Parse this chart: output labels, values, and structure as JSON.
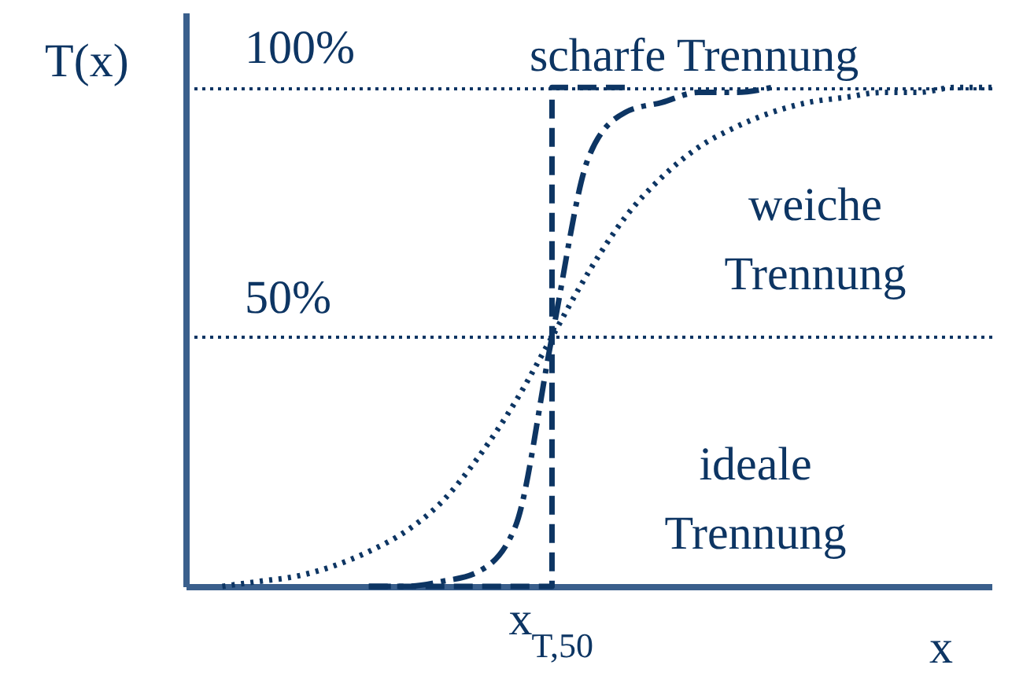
{
  "chart_data": {
    "type": "line",
    "xlabel": "x",
    "ylabel": "T(x)",
    "categories": [
      null,
      null,
      null,
      null,
      null,
      null,
      null,
      null,
      null,
      null,
      "x$_{T,50}$",
      null,
      null,
      null,
      null,
      null,
      null,
      null,
      null,
      null,
      null,
      null,
      null
    ],
    "ylim": [
      0,
      115
    ],
    "yticks": [
      {
        "value": 50,
        "label": "50%"
      },
      {
        "value": 100,
        "label": "100%"
      }
    ],
    "grid": "y",
    "series": [
      {
        "name": "scharfe Trennung",
        "color": "#0d3563",
        "line_style": "dashdot",
        "values": [
          null,
          null,
          null,
          null,
          null,
          0,
          0,
          1,
          3,
          12,
          50,
          86,
          95,
          97,
          99,
          99,
          100,
          null,
          null,
          null,
          null,
          null,
          null
        ]
      },
      {
        "name": "weiche Trennung",
        "color": "#0d3563",
        "line_style": "dotted",
        "values": [
          null,
          0,
          1,
          2,
          4,
          7,
          11,
          17,
          26,
          37,
          50,
          63,
          74,
          82,
          88,
          92,
          95,
          97,
          98,
          99,
          99,
          100,
          100
        ]
      },
      {
        "name": "ideale Trennung",
        "type": "step",
        "color": "#0d3563",
        "line_style": "dashed",
        "values": [
          null,
          null,
          null,
          null,
          null,
          0,
          0,
          0,
          0,
          0,
          100,
          100,
          100,
          null,
          null,
          null,
          null,
          null,
          null,
          null,
          null,
          null,
          null
        ]
      }
    ]
  }
}
